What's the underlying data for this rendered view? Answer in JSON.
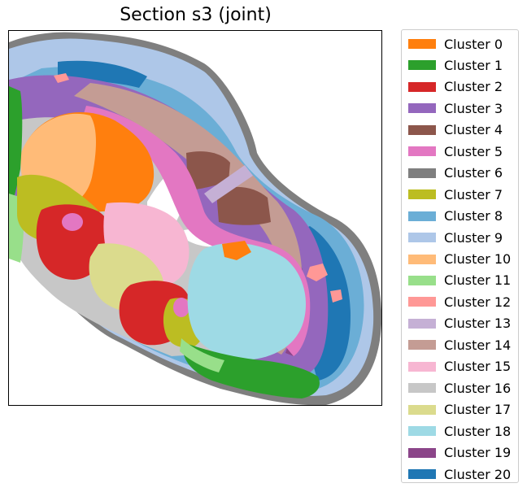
{
  "title": "Section s3 (joint)",
  "legend": {
    "items": [
      {
        "label": "Cluster 0",
        "color": "#ff7f0e"
      },
      {
        "label": "Cluster 1",
        "color": "#2ca02c"
      },
      {
        "label": "Cluster 2",
        "color": "#d62728"
      },
      {
        "label": "Cluster 3",
        "color": "#9467bd"
      },
      {
        "label": "Cluster 4",
        "color": "#8c564b"
      },
      {
        "label": "Cluster 5",
        "color": "#e377c2"
      },
      {
        "label": "Cluster 6",
        "color": "#7f7f7f"
      },
      {
        "label": "Cluster 7",
        "color": "#bcbd22"
      },
      {
        "label": "Cluster 8",
        "color": "#6baed6"
      },
      {
        "label": "Cluster 9",
        "color": "#aec7e8"
      },
      {
        "label": "Cluster 10",
        "color": "#ffbb78"
      },
      {
        "label": "Cluster 11",
        "color": "#98df8a"
      },
      {
        "label": "Cluster 12",
        "color": "#ff9896"
      },
      {
        "label": "Cluster 13",
        "color": "#c5b0d5"
      },
      {
        "label": "Cluster 14",
        "color": "#c49c94"
      },
      {
        "label": "Cluster 15",
        "color": "#f7b6d2"
      },
      {
        "label": "Cluster 16",
        "color": "#c7c7c7"
      },
      {
        "label": "Cluster 17",
        "color": "#dbdb8d"
      },
      {
        "label": "Cluster 18",
        "color": "#9edae5"
      },
      {
        "label": "Cluster 19",
        "color": "#8b4589"
      },
      {
        "label": "Cluster 20",
        "color": "#1f77b4"
      }
    ]
  }
}
